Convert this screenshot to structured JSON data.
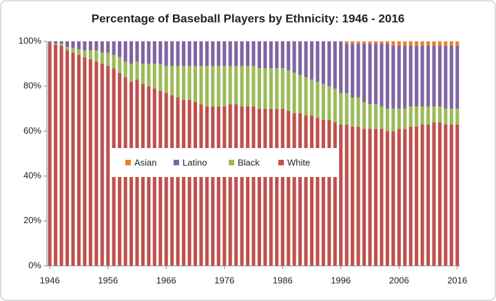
{
  "chart_data": {
    "type": "stacked_bar",
    "title": "Percentage of Baseball Players by Ethnicity: 1946 - 2016",
    "x": [
      1946,
      1947,
      1948,
      1949,
      1950,
      1951,
      1952,
      1953,
      1954,
      1955,
      1956,
      1957,
      1958,
      1959,
      1960,
      1961,
      1962,
      1963,
      1964,
      1965,
      1966,
      1967,
      1968,
      1969,
      1970,
      1971,
      1972,
      1973,
      1974,
      1975,
      1976,
      1977,
      1978,
      1979,
      1980,
      1981,
      1982,
      1983,
      1984,
      1985,
      1986,
      1987,
      1988,
      1989,
      1990,
      1991,
      1992,
      1993,
      1994,
      1995,
      1996,
      1997,
      1998,
      1999,
      2000,
      2001,
      2002,
      2003,
      2004,
      2005,
      2006,
      2007,
      2008,
      2009,
      2010,
      2011,
      2012,
      2013,
      2014,
      2015,
      2016
    ],
    "series": [
      {
        "name": "White",
        "color": "#c0504d",
        "values": [
          99,
          98.5,
          98,
          96,
          95,
          94,
          93,
          92,
          91,
          90,
          89,
          88,
          86,
          84,
          82,
          83,
          81,
          80,
          79,
          78,
          77,
          76,
          75,
          74,
          74,
          73,
          72,
          71,
          71,
          71,
          71,
          72,
          72,
          71,
          71,
          71,
          70,
          70,
          70,
          70,
          70,
          69,
          68,
          68,
          67,
          67,
          66,
          65,
          65,
          64,
          63,
          63,
          62,
          62,
          61,
          61,
          61,
          61,
          60,
          60,
          61,
          61,
          62,
          62,
          63,
          63,
          64,
          64,
          63,
          63,
          63
        ]
      },
      {
        "name": "Black",
        "color": "#9bbb59",
        "values": [
          0,
          0.5,
          1,
          1.5,
          2,
          2.5,
          3,
          4,
          5,
          5,
          6,
          6,
          7,
          7,
          8,
          8,
          9,
          10,
          11,
          12,
          12,
          13,
          14,
          15,
          15,
          16,
          17,
          18,
          18,
          18,
          18,
          17,
          17,
          18,
          18,
          18,
          18,
          18,
          18,
          18,
          18,
          18,
          18,
          17,
          17,
          16,
          16,
          16,
          15,
          15,
          14,
          14,
          13,
          13,
          12,
          11,
          11,
          10,
          10,
          10,
          9,
          9,
          9,
          9,
          8,
          8,
          7,
          7,
          7,
          7,
          7
        ]
      },
      {
        "name": "Latino",
        "color": "#8064a2",
        "values": [
          1,
          1,
          1,
          2.5,
          3,
          3.5,
          4,
          4,
          4,
          5,
          5,
          6,
          7,
          9,
          10,
          9,
          10,
          10,
          10,
          10,
          11,
          11,
          11,
          11,
          11,
          11,
          11,
          11,
          11,
          11,
          11,
          11,
          11,
          11,
          11,
          11,
          12,
          12,
          12,
          12,
          12,
          13,
          14,
          15,
          16,
          17,
          18,
          19,
          20,
          21,
          23,
          22,
          24,
          24,
          26,
          27,
          27,
          28,
          29,
          28,
          28,
          28,
          27,
          27,
          27,
          27,
          27,
          27,
          28,
          28,
          28
        ]
      },
      {
        "name": "Asian",
        "color": "#e8822a",
        "values": [
          0,
          0,
          0,
          0,
          0,
          0,
          0,
          0,
          0,
          0,
          0,
          0,
          0,
          0,
          0,
          0,
          0,
          0,
          0,
          0,
          0,
          0,
          0,
          0,
          0,
          0,
          0,
          0,
          0,
          0,
          0,
          0,
          0,
          0,
          0,
          0,
          0,
          0,
          0,
          0,
          0,
          0,
          0,
          0,
          0,
          0,
          0,
          0,
          0,
          0,
          0,
          1,
          1,
          1,
          1,
          1,
          1,
          1,
          1,
          2,
          2,
          2,
          2,
          2,
          2,
          2,
          2,
          2,
          2,
          2,
          2
        ]
      }
    ],
    "xlim": [
      1945.5,
      2016.5
    ],
    "xticks": [
      1946,
      1956,
      1966,
      1976,
      1986,
      1996,
      2006,
      2016
    ],
    "ylim": [
      0,
      100
    ],
    "yticks": [
      {
        "value": 0,
        "label": "0%"
      },
      {
        "value": 20,
        "label": "20%"
      },
      {
        "value": 40,
        "label": "40%"
      },
      {
        "value": 60,
        "label": "60%"
      },
      {
        "value": 80,
        "label": "80%"
      },
      {
        "value": 100,
        "label": "100%"
      }
    ],
    "legend": "center"
  }
}
